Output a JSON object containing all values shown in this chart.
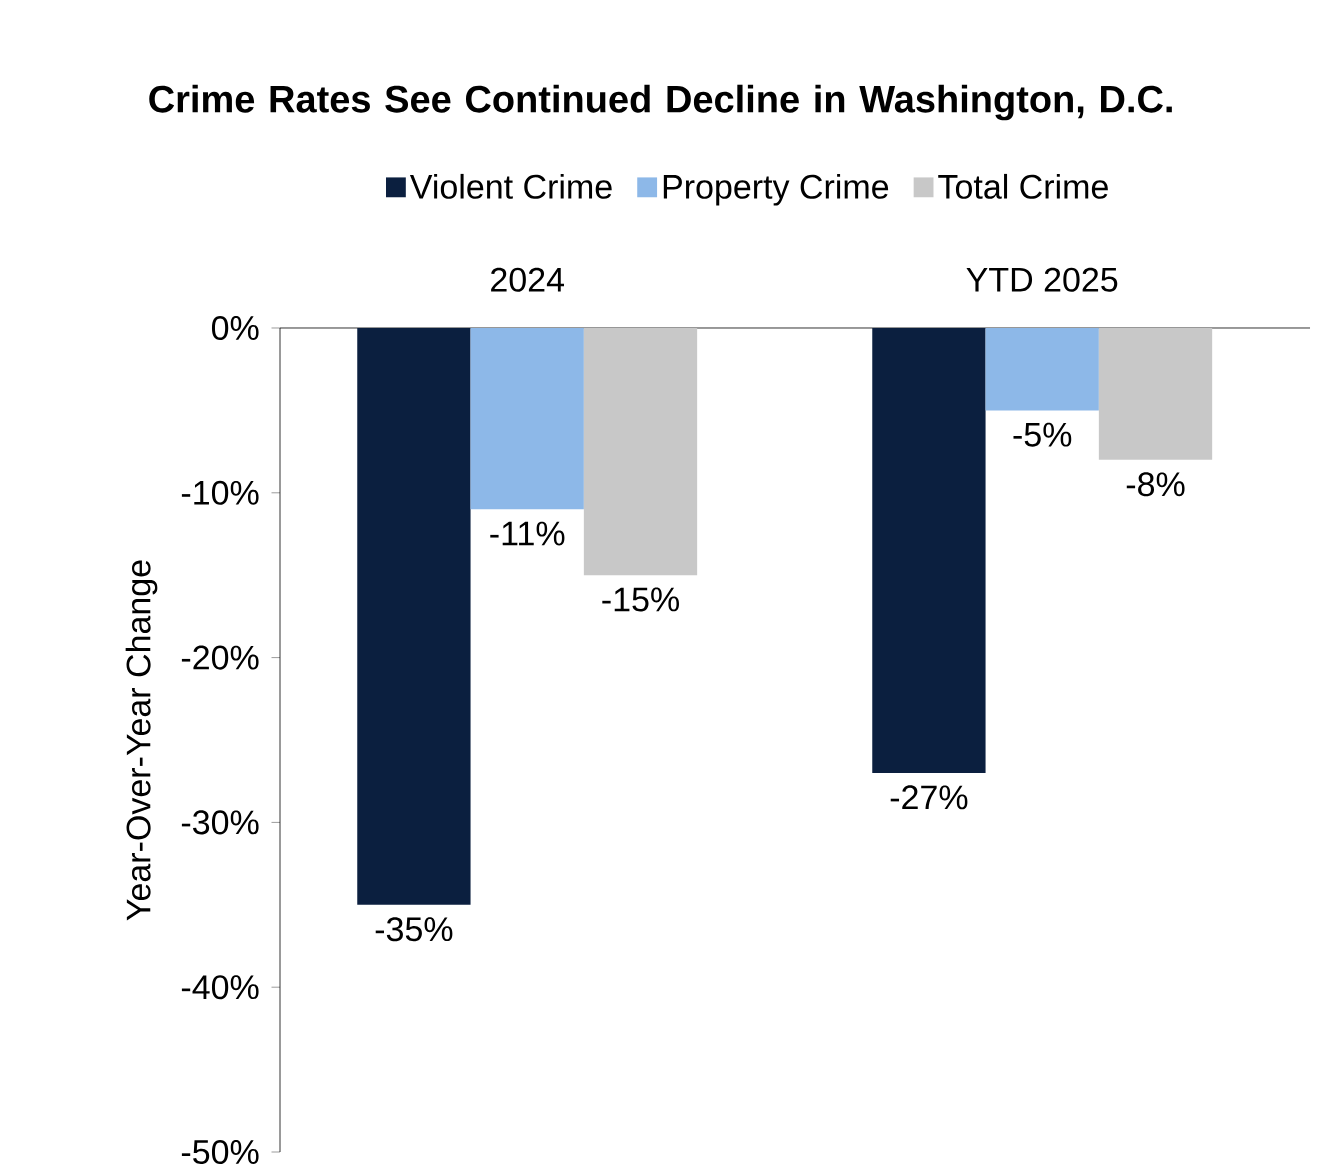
{
  "chart_data": {
    "type": "bar",
    "title": "Crime Rates See Continued Decline in Washington, D.C.",
    "ylabel": "Year-Over-Year Change",
    "categories": [
      "2024",
      "YTD 2025"
    ],
    "ylim": [
      -50,
      0
    ],
    "yticks": [
      {
        "value": 0,
        "label": "0%"
      },
      {
        "value": -10,
        "label": "-10%"
      },
      {
        "value": -20,
        "label": "-20%"
      },
      {
        "value": -30,
        "label": "-30%"
      },
      {
        "value": -40,
        "label": "-40%"
      },
      {
        "value": -50,
        "label": "-50%"
      }
    ],
    "legend": "top",
    "grid": false,
    "series": [
      {
        "name": "Violent Crime",
        "color": "#0b1f3f",
        "values": [
          -35,
          -27
        ],
        "value_labels": [
          "-35%",
          "-27%"
        ]
      },
      {
        "name": "Property Crime",
        "color": "#8db8e8",
        "values": [
          -11,
          -5
        ],
        "value_labels": [
          "-11%",
          "-5%"
        ]
      },
      {
        "name": "Total Crime",
        "color": "#c8c8c8",
        "values": [
          -15,
          -8
        ],
        "value_labels": [
          "-15%",
          "-8%"
        ]
      }
    ]
  }
}
